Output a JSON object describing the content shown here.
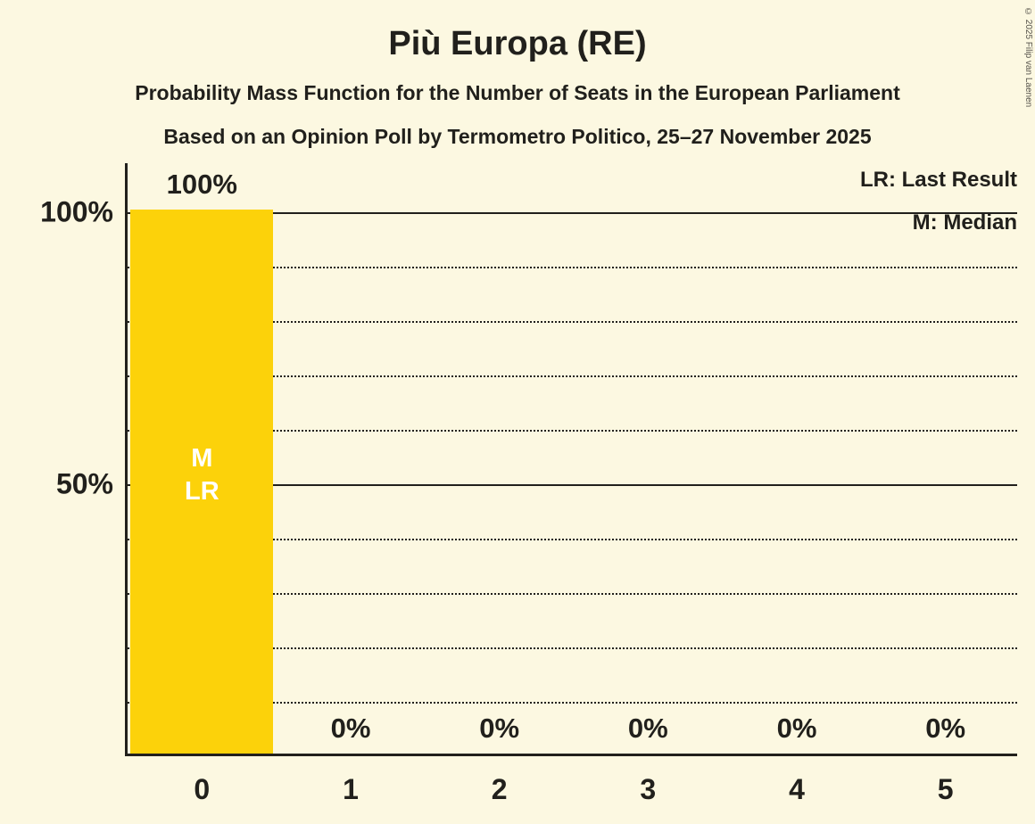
{
  "title": "Più Europa (RE)",
  "subtitle1": "Probability Mass Function for the Number of Seats in the European Parliament",
  "subtitle2": "Based on an Opinion Poll by Termometro Politico, 25–27 November 2025",
  "legend": {
    "lr": "LR: Last Result",
    "m": "M: Median"
  },
  "copyright": "© 2025 Filip van Laenen",
  "colors": {
    "background": "#FCF8E1",
    "bar": "#FCD20A",
    "text": "#21201C",
    "bar_annotation": "#FFFFFF"
  },
  "chart_data": {
    "type": "bar",
    "title": "Più Europa (RE)",
    "xlabel": "",
    "ylabel": "",
    "categories": [
      "0",
      "1",
      "2",
      "3",
      "4",
      "5"
    ],
    "values": [
      100,
      0,
      0,
      0,
      0,
      0
    ],
    "value_labels": [
      "100%",
      "0%",
      "0%",
      "0%",
      "0%",
      "0%"
    ],
    "bar_annotations": [
      [
        "M",
        "LR"
      ],
      [],
      [],
      [],
      [],
      []
    ],
    "median_seats": 0,
    "last_result_seats": 0,
    "ylim": [
      0,
      100
    ],
    "yticks": [
      {
        "value": 100,
        "label": "100%"
      },
      {
        "value": 50,
        "label": "50%"
      }
    ],
    "solid_gridlines": [
      100,
      50
    ],
    "dotted_gridlines": [
      90,
      80,
      70,
      60,
      40,
      30,
      20,
      10
    ],
    "grid": "dotted-horizontal",
    "legend_position": "top-right"
  }
}
